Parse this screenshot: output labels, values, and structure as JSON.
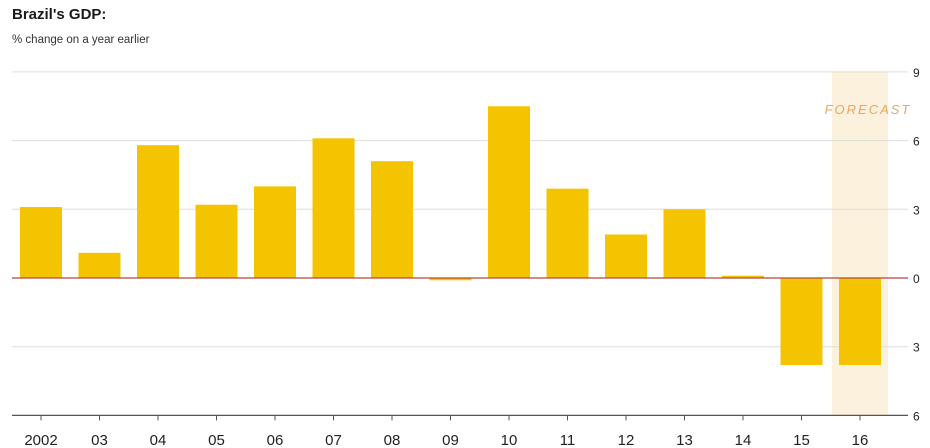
{
  "chart_data": {
    "type": "bar",
    "title": "Brazil's GDP:",
    "subtitle": "% change on a year earlier",
    "categories": [
      "2002",
      "03",
      "04",
      "05",
      "06",
      "07",
      "08",
      "09",
      "10",
      "11",
      "12",
      "13",
      "14",
      "15",
      "16"
    ],
    "values": [
      3.1,
      1.1,
      5.8,
      3.2,
      4.0,
      6.1,
      5.1,
      -0.1,
      7.5,
      3.9,
      1.9,
      3.0,
      0.1,
      -3.8,
      -3.8
    ],
    "ylim": [
      -6,
      9
    ],
    "yticks": [
      -6,
      -3,
      0,
      3,
      6,
      9
    ],
    "forecast_label": "FORECAST",
    "forecast_category": "16",
    "bar_color": "#f5c400",
    "forecast_shade_color": "#fbf1dc",
    "forecast_text_color": "#e8a860",
    "zero_line_color": "#b04a3a",
    "grid": true
  }
}
